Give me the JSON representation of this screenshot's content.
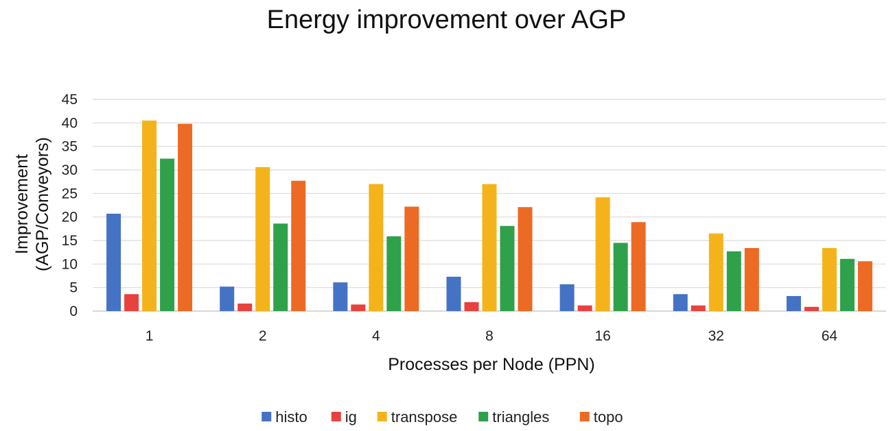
{
  "chart_data": {
    "type": "bar",
    "title": "Energy improvement over AGP",
    "xlabel": "Processes per Node (PPN)",
    "ylabel_lines": [
      "Improvement",
      "(AGP/Conveyors)"
    ],
    "categories": [
      "1",
      "2",
      "4",
      "8",
      "16",
      "32",
      "64"
    ],
    "ylim": [
      0,
      45
    ],
    "yticks": [
      0,
      5,
      10,
      15,
      20,
      25,
      30,
      35,
      40,
      45
    ],
    "grid": true,
    "legend_position": "bottom",
    "series": [
      {
        "name": "histo",
        "color": "#4472C4",
        "values": [
          20.7,
          5.2,
          6.1,
          7.3,
          5.7,
          3.6,
          3.2
        ]
      },
      {
        "name": "ig",
        "color": "#E8423F",
        "values": [
          3.6,
          1.6,
          1.4,
          1.9,
          1.2,
          1.2,
          0.9
        ]
      },
      {
        "name": "transpose",
        "color": "#F5B31B",
        "values": [
          40.5,
          30.6,
          27.0,
          27.0,
          24.2,
          16.5,
          13.4
        ]
      },
      {
        "name": "triangles",
        "color": "#2EA14A",
        "values": [
          32.4,
          18.6,
          15.9,
          18.1,
          14.5,
          12.7,
          11.1
        ]
      },
      {
        "name": "topo",
        "color": "#EC6A24",
        "values": [
          39.8,
          27.7,
          22.2,
          22.1,
          18.9,
          13.4,
          10.6
        ]
      }
    ]
  }
}
